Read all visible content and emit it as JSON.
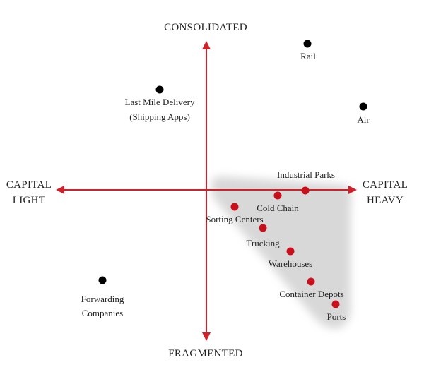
{
  "axes": {
    "top": "CONSOLIDATED",
    "bottom": "FRAGMENTED",
    "left": [
      "CAPITAL",
      "LIGHT"
    ],
    "right": [
      "CAPITAL",
      "HEAVY"
    ]
  },
  "colors": {
    "axis": "#d0212b",
    "highlight_dot": "#c8101c",
    "plain_dot": "#000000",
    "highlight_region": "#d6d6d6",
    "text": "#222222"
  },
  "points": [
    {
      "id": "rail",
      "label": [
        "Rail"
      ],
      "group": "plain"
    },
    {
      "id": "air",
      "label": [
        "Air"
      ],
      "group": "plain"
    },
    {
      "id": "last-mile-delivery",
      "label": [
        "Last Mile Delivery",
        "(Shipping Apps)"
      ],
      "group": "plain"
    },
    {
      "id": "forwarding-companies",
      "label": [
        "Forwarding",
        "Companies"
      ],
      "group": "plain"
    },
    {
      "id": "industrial-parks",
      "label": [
        "Industrial Parks"
      ],
      "group": "highlight"
    },
    {
      "id": "cold-chain",
      "label": [
        "Cold Chain"
      ],
      "group": "highlight"
    },
    {
      "id": "sorting-centers",
      "label": [
        "Sorting Centers"
      ],
      "group": "highlight"
    },
    {
      "id": "trucking",
      "label": [
        "Trucking"
      ],
      "group": "highlight"
    },
    {
      "id": "warehouses",
      "label": [
        "Warehouses"
      ],
      "group": "highlight"
    },
    {
      "id": "container-depots",
      "label": [
        "Container Depots"
      ],
      "group": "highlight"
    },
    {
      "id": "ports",
      "label": [
        "Ports"
      ],
      "group": "highlight"
    }
  ]
}
